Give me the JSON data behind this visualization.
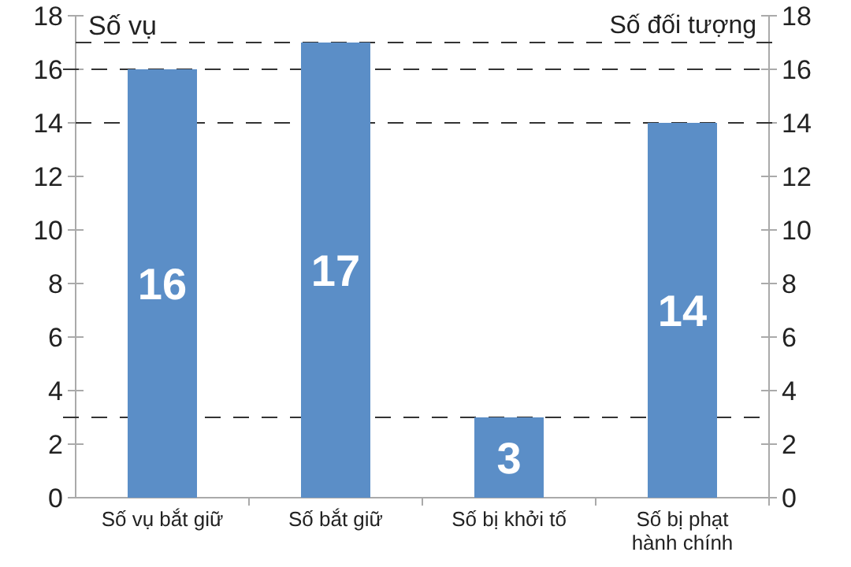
{
  "chart_data": {
    "type": "bar",
    "ylabel": "Số vụ",
    "y2label": "Số đối tượng",
    "categories": [
      "Số vụ bắt giữ",
      "Số bắt giữ",
      "Số bị khởi tố",
      "Số bị phạt hành chính"
    ],
    "values": [
      16,
      17,
      3,
      14
    ],
    "color": "#5b8ec7",
    "data_labels": true,
    "ylim": [
      0,
      18
    ],
    "yticks": [
      0,
      2,
      4,
      6,
      8,
      10,
      12,
      14,
      16,
      18
    ],
    "y2lim": [
      0,
      18
    ],
    "y2ticks": [
      0,
      2,
      4,
      6,
      8,
      10,
      12,
      14,
      16,
      18
    ],
    "ref_lines": [
      {
        "axis": "y",
        "value": 16,
        "color": "#333333",
        "line_style": "dashed"
      },
      {
        "axis": "y2",
        "value": 17,
        "color": "#333333",
        "line_style": "dashed"
      },
      {
        "axis": "y2",
        "value": 14,
        "color": "#333333",
        "line_style": "dashed"
      },
      {
        "axis": "y",
        "value": 3,
        "color": "#333333",
        "line_style": "dashed"
      }
    ],
    "grid": false
  }
}
